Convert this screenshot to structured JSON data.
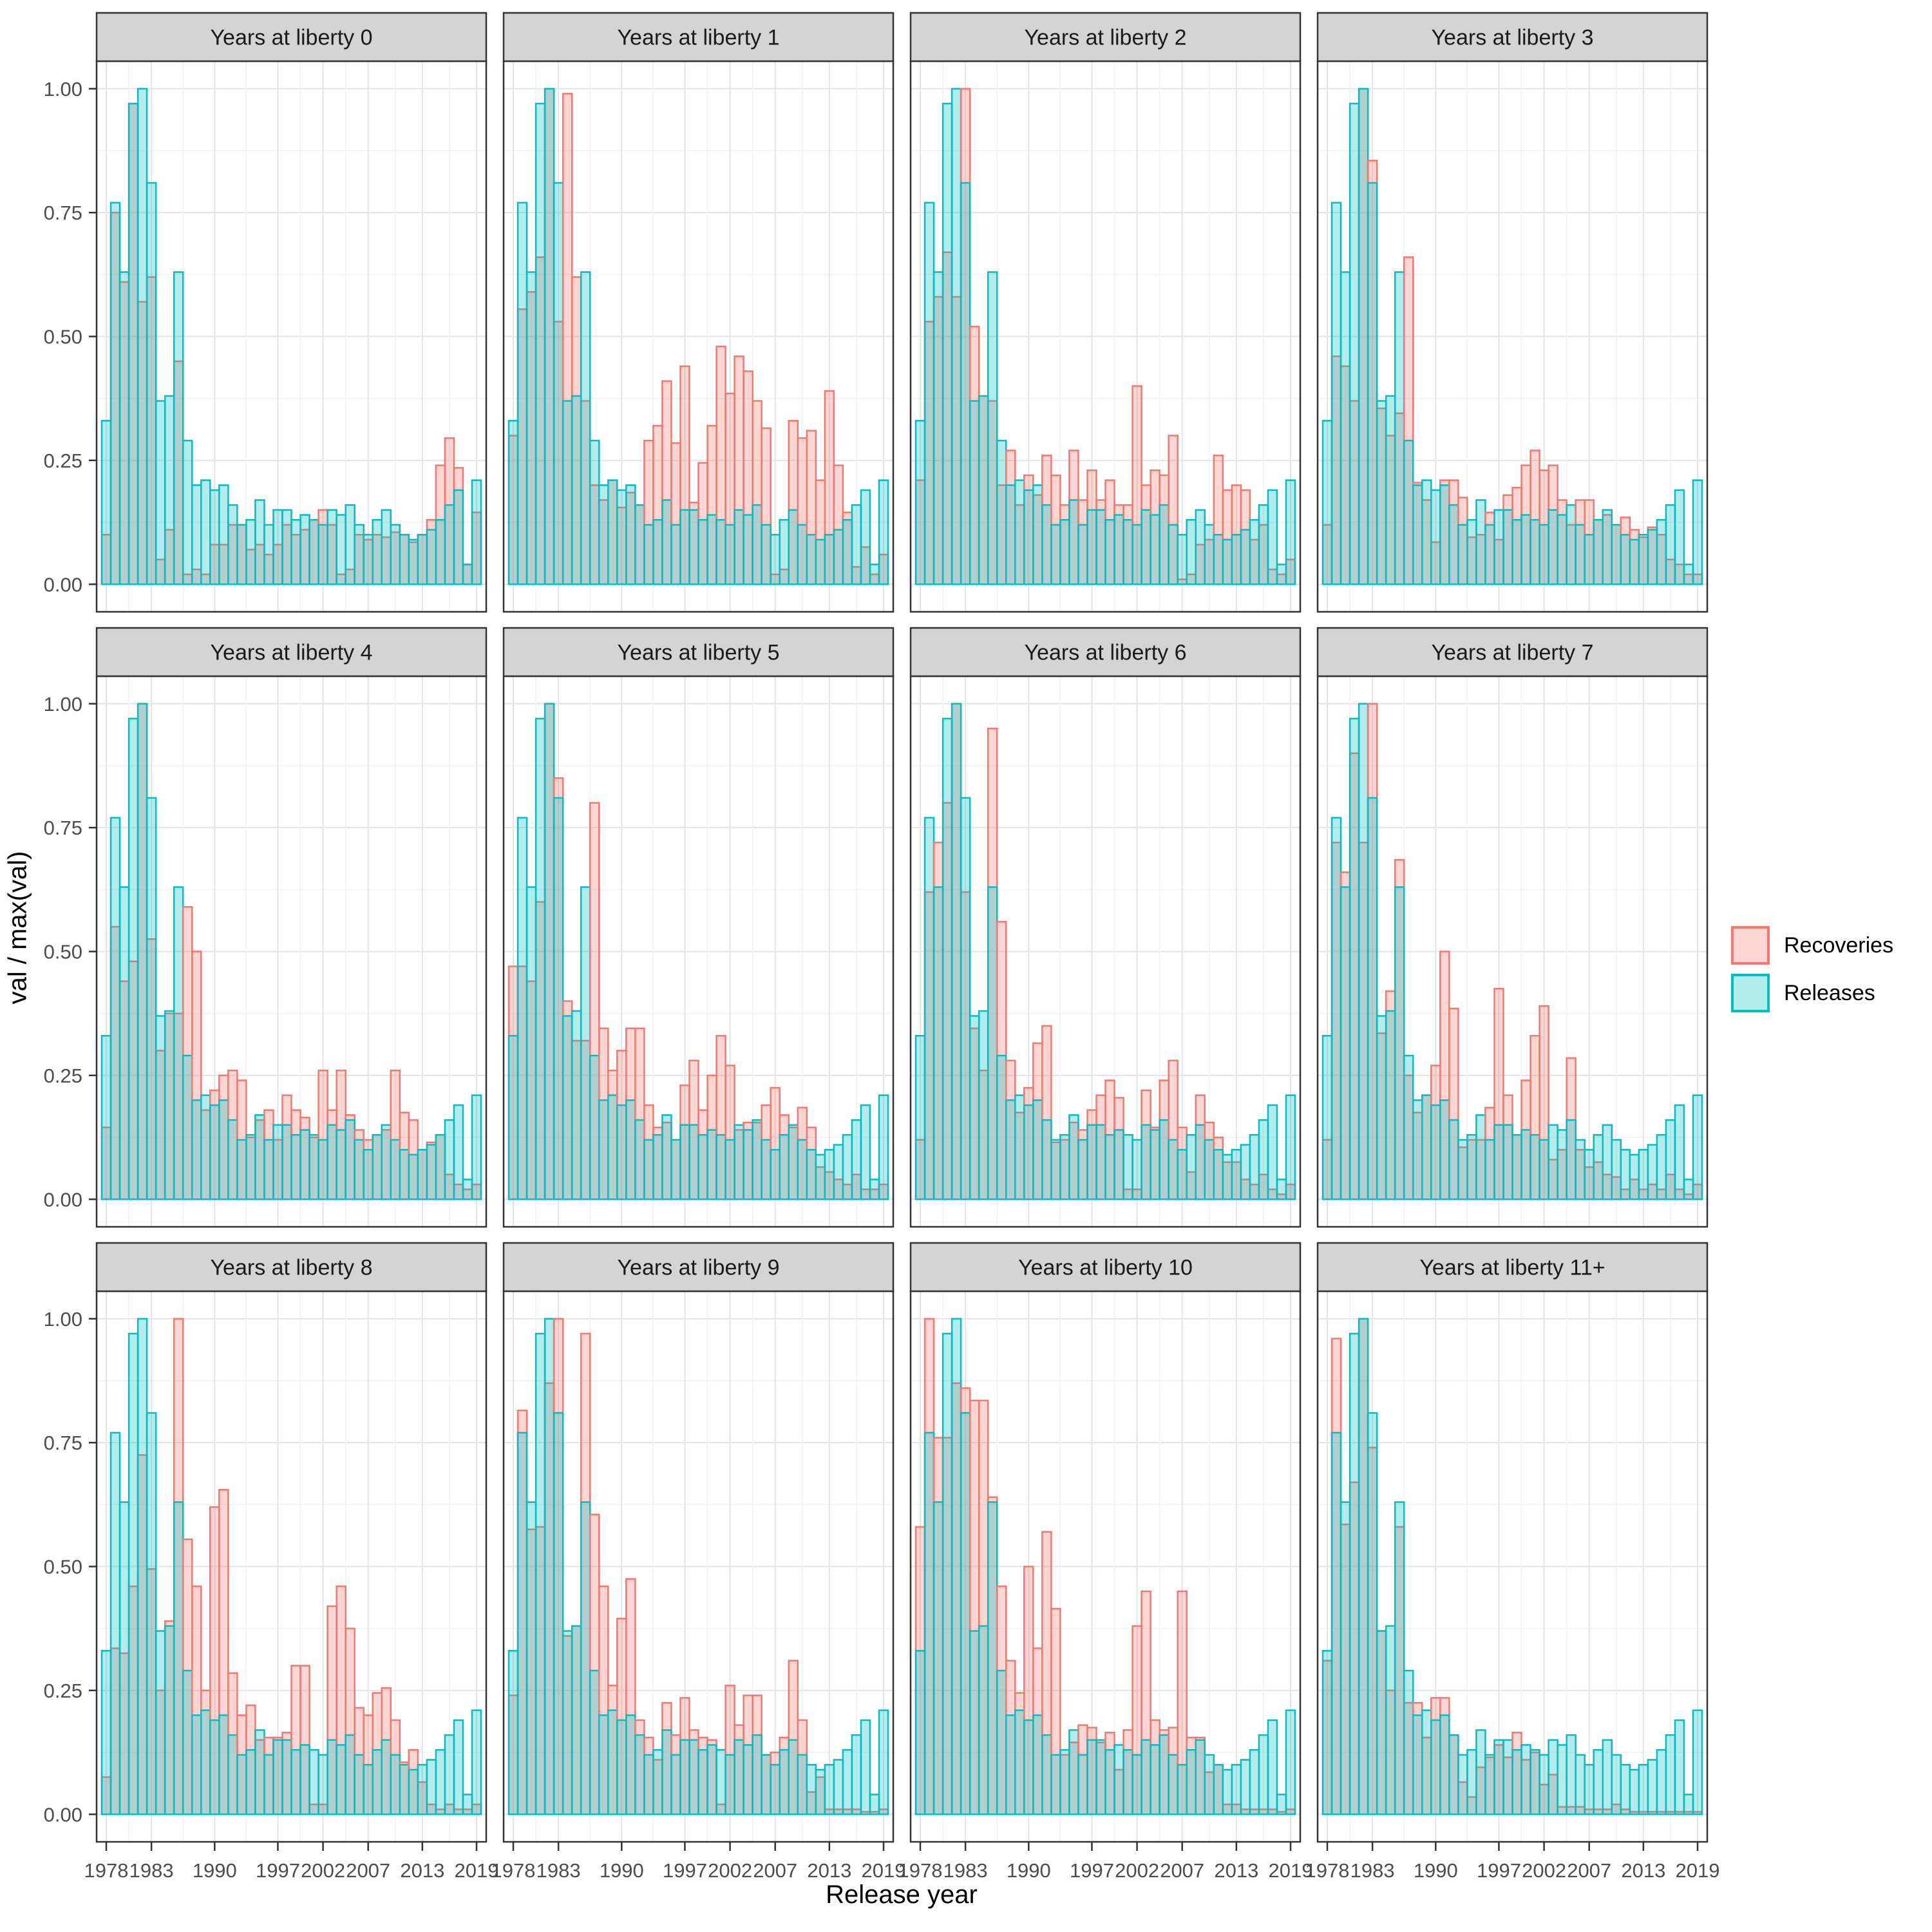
{
  "chart_data": {
    "type": "bar",
    "facet_titles": [
      "Years at liberty 0",
      "Years at liberty 1",
      "Years at liberty 2",
      "Years at liberty 3",
      "Years at liberty 4",
      "Years at liberty 5",
      "Years at liberty 6",
      "Years at liberty 7",
      "Years at liberty 8",
      "Years at liberty 9",
      "Years at liberty 10",
      "Years at liberty 11+"
    ],
    "xlabel": "Release year",
    "ylabel": "val / max(val)",
    "years": [
      1978,
      1979,
      1980,
      1981,
      1982,
      1983,
      1984,
      1985,
      1986,
      1987,
      1988,
      1989,
      1990,
      1991,
      1992,
      1993,
      1994,
      1995,
      1996,
      1997,
      1998,
      1999,
      2000,
      2001,
      2002,
      2003,
      2004,
      2005,
      2006,
      2007,
      2008,
      2009,
      2010,
      2011,
      2012,
      2013,
      2014,
      2015,
      2016,
      2017,
      2018,
      2019
    ],
    "x_tick_years": [
      "1978",
      "1983",
      "1990",
      "1997",
      "2002",
      "2007",
      "2013",
      "2019"
    ],
    "x_tick_indices": [
      0,
      5,
      12,
      19,
      24,
      29,
      35,
      41
    ],
    "y_tick_labels": [
      "1.00",
      "0.75",
      "0.50",
      "0.25",
      "0.00"
    ],
    "y_tick_values": [
      1.0,
      0.75,
      0.5,
      0.25,
      0.0
    ],
    "ylim": [
      0,
      1.0
    ],
    "grid": "major+minor",
    "legend_position": "right",
    "colors": {
      "recoveries_stroke": "#F8766D",
      "recoveries_fill": "rgba(248,118,109,0.30)",
      "releases_stroke": "#00BFC4",
      "releases_fill": "rgba(0,191,196,0.30)",
      "strip_fill": "#D4D4D4",
      "panel_border": "#333333",
      "grid_major": "#E4E4E4",
      "grid_minor": "#F2F2F2",
      "tick_label": "#4D4D4D"
    },
    "legend": {
      "entries": [
        {
          "label": "Recoveries",
          "color": "#F8766D",
          "fill": "rgba(248,118,109,0.30)"
        },
        {
          "label": "Releases",
          "color": "#00BFC4",
          "fill": "rgba(0,191,196,0.30)"
        }
      ]
    },
    "releases": [
      0.33,
      0.77,
      0.63,
      0.97,
      1.0,
      0.81,
      0.37,
      0.38,
      0.63,
      0.29,
      0.2,
      0.21,
      0.19,
      0.2,
      0.16,
      0.12,
      0.13,
      0.17,
      0.12,
      0.15,
      0.15,
      0.13,
      0.14,
      0.13,
      0.12,
      0.15,
      0.14,
      0.16,
      0.12,
      0.1,
      0.13,
      0.15,
      0.12,
      0.1,
      0.09,
      0.1,
      0.11,
      0.13,
      0.16,
      0.19,
      0.04,
      0.21
    ],
    "recoveries_by_facet": [
      [
        0.1,
        0.75,
        0.61,
        0.97,
        0.57,
        0.62,
        0.05,
        0.11,
        0.45,
        0.02,
        0.03,
        0.02,
        0.08,
        0.08,
        0.12,
        0.12,
        0.07,
        0.08,
        0.06,
        0.08,
        0.12,
        0.1,
        0.11,
        0.13,
        0.15,
        0.12,
        0.02,
        0.03,
        0.1,
        0.09,
        0.1,
        0.095,
        0.105,
        0.1,
        0.085,
        0.1,
        0.13,
        0.24,
        0.295,
        0.235,
        0.04,
        0.145
      ],
      [
        0.3,
        0.555,
        0.59,
        0.66,
        1.0,
        0.53,
        0.99,
        0.62,
        0.37,
        0.2,
        0.17,
        0.21,
        0.155,
        0.185,
        0.16,
        0.29,
        0.32,
        0.41,
        0.285,
        0.44,
        0.165,
        0.245,
        0.32,
        0.48,
        0.385,
        0.46,
        0.43,
        0.37,
        0.315,
        0.02,
        0.03,
        0.33,
        0.295,
        0.31,
        0.21,
        0.39,
        0.24,
        0.145,
        0.035,
        0.075,
        0.02,
        0.06
      ],
      [
        0.21,
        0.53,
        0.58,
        0.67,
        0.58,
        1.0,
        0.52,
        0.38,
        0.37,
        0.2,
        0.27,
        0.16,
        0.22,
        0.18,
        0.26,
        0.22,
        0.16,
        0.27,
        0.17,
        0.23,
        0.17,
        0.21,
        0.16,
        0.16,
        0.4,
        0.2,
        0.23,
        0.22,
        0.3,
        0.01,
        0.02,
        0.08,
        0.09,
        0.26,
        0.19,
        0.2,
        0.19,
        0.09,
        0.12,
        0.03,
        0.02,
        0.05
      ],
      [
        0.12,
        0.46,
        0.44,
        0.37,
        1.0,
        0.855,
        0.355,
        0.3,
        0.345,
        0.66,
        0.205,
        0.17,
        0.085,
        0.21,
        0.21,
        0.175,
        0.095,
        0.1,
        0.145,
        0.09,
        0.18,
        0.195,
        0.24,
        0.27,
        0.23,
        0.24,
        0.17,
        0.12,
        0.17,
        0.17,
        0.13,
        0.14,
        0.12,
        0.135,
        0.11,
        0.095,
        0.115,
        0.1,
        0.05,
        0.04,
        0.02,
        0.02
      ],
      [
        0.145,
        0.55,
        0.44,
        0.48,
        1.0,
        0.525,
        0.3,
        0.375,
        0.375,
        0.59,
        0.5,
        0.18,
        0.22,
        0.25,
        0.26,
        0.24,
        0.125,
        0.16,
        0.18,
        0.12,
        0.21,
        0.18,
        0.165,
        0.125,
        0.26,
        0.18,
        0.26,
        0.17,
        0.14,
        0.12,
        0.13,
        0.14,
        0.26,
        0.175,
        0.16,
        0.1,
        0.115,
        0.13,
        0.05,
        0.03,
        0.02,
        0.03
      ],
      [
        0.47,
        0.47,
        0.44,
        0.6,
        1.0,
        0.85,
        0.4,
        0.32,
        0.32,
        0.8,
        0.345,
        0.26,
        0.3,
        0.345,
        0.345,
        0.19,
        0.145,
        0.155,
        0.12,
        0.23,
        0.28,
        0.18,
        0.25,
        0.33,
        0.27,
        0.14,
        0.155,
        0.155,
        0.19,
        0.225,
        0.17,
        0.145,
        0.185,
        0.145,
        0.065,
        0.055,
        0.04,
        0.03,
        0.05,
        0.02,
        0.02,
        0.03
      ],
      [
        0.12,
        0.62,
        0.72,
        0.8,
        1.0,
        0.62,
        0.345,
        0.26,
        0.95,
        0.56,
        0.28,
        0.175,
        0.225,
        0.315,
        0.35,
        0.115,
        0.12,
        0.155,
        0.14,
        0.18,
        0.21,
        0.24,
        0.205,
        0.02,
        0.02,
        0.22,
        0.145,
        0.24,
        0.28,
        0.145,
        0.055,
        0.21,
        0.155,
        0.125,
        0.075,
        0.075,
        0.04,
        0.03,
        0.05,
        0.02,
        0.01,
        0.03
      ],
      [
        0.12,
        0.72,
        0.66,
        0.9,
        0.72,
        1.0,
        0.335,
        0.42,
        0.685,
        0.25,
        0.175,
        0.21,
        0.27,
        0.5,
        0.385,
        0.105,
        0.12,
        0.12,
        0.185,
        0.425,
        0.21,
        0.13,
        0.24,
        0.33,
        0.39,
        0.08,
        0.1,
        0.285,
        0.1,
        0.065,
        0.075,
        0.05,
        0.045,
        0.02,
        0.04,
        0.02,
        0.03,
        0.02,
        0.05,
        0.02,
        0.01,
        0.03
      ],
      [
        0.075,
        0.335,
        0.325,
        0.46,
        0.725,
        0.495,
        0.25,
        0.39,
        1.0,
        0.555,
        0.46,
        0.25,
        0.62,
        0.655,
        0.285,
        0.2,
        0.22,
        0.15,
        0.155,
        0.155,
        0.165,
        0.3,
        0.3,
        0.02,
        0.02,
        0.42,
        0.46,
        0.375,
        0.215,
        0.2,
        0.245,
        0.255,
        0.19,
        0.105,
        0.13,
        0.065,
        0.02,
        0.01,
        0.02,
        0.01,
        0.01,
        0.02
      ],
      [
        0.24,
        0.815,
        0.575,
        0.58,
        0.87,
        1.0,
        0.36,
        0.38,
        0.97,
        0.605,
        0.46,
        0.26,
        0.395,
        0.475,
        0.19,
        0.155,
        0.11,
        0.225,
        0.16,
        0.235,
        0.17,
        0.155,
        0.15,
        0.02,
        0.26,
        0.18,
        0.24,
        0.24,
        0.12,
        0.125,
        0.155,
        0.31,
        0.19,
        0.045,
        0.075,
        0.01,
        0.01,
        0.01,
        0.01,
        0.005,
        0.005,
        0.01
      ],
      [
        0.58,
        1.0,
        0.76,
        0.76,
        0.87,
        0.86,
        0.835,
        0.835,
        0.64,
        0.46,
        0.31,
        0.245,
        0.5,
        0.335,
        0.57,
        0.415,
        0.12,
        0.145,
        0.18,
        0.175,
        0.145,
        0.165,
        0.09,
        0.17,
        0.38,
        0.45,
        0.19,
        0.17,
        0.175,
        0.45,
        0.155,
        0.155,
        0.085,
        0.1,
        0.02,
        0.02,
        0.01,
        0.01,
        0.01,
        0.01,
        0.005,
        0.01
      ],
      [
        0.31,
        0.96,
        0.585,
        0.67,
        1.0,
        0.74,
        0.37,
        0.25,
        0.58,
        0.225,
        0.225,
        0.155,
        0.235,
        0.235,
        0.16,
        0.065,
        0.035,
        0.095,
        0.115,
        0.14,
        0.115,
        0.165,
        0.11,
        0.125,
        0.06,
        0.08,
        0.015,
        0.015,
        0.015,
        0.01,
        0.01,
        0.01,
        0.02,
        0.01,
        0.005,
        0.005,
        0.005,
        0.005,
        0.005,
        0.005,
        0.005,
        0.005
      ]
    ]
  }
}
